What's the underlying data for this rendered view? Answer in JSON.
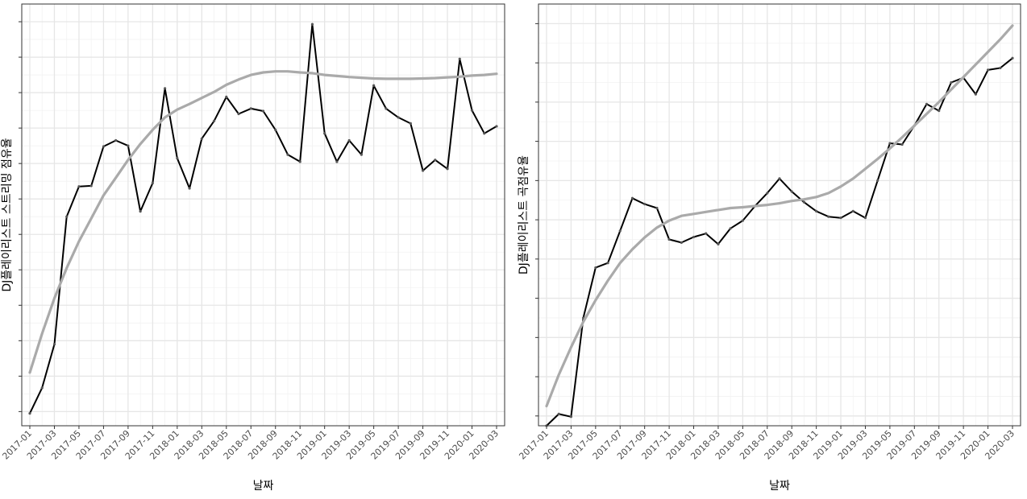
{
  "chart_data": [
    {
      "type": "line",
      "xlabel": "날짜",
      "ylabel": "DJ플레이리스트 스트리밍 점유율",
      "x_ticks": [
        "2017-01",
        "2017-03",
        "2017-05",
        "2017-07",
        "2017-09",
        "2017-11",
        "2018-01",
        "2018-03",
        "2018-05",
        "2018-07",
        "2018-09",
        "2018-11",
        "2019-01",
        "2019-03",
        "2019-05",
        "2019-07",
        "2019-09",
        "2019-11",
        "2020-01",
        "2020-03"
      ],
      "x": [
        "2017-01",
        "2017-02",
        "2017-03",
        "2017-04",
        "2017-05",
        "2017-06",
        "2017-07",
        "2017-08",
        "2017-09",
        "2017-10",
        "2017-11",
        "2017-12",
        "2018-01",
        "2018-02",
        "2018-03",
        "2018-04",
        "2018-05",
        "2018-06",
        "2018-07",
        "2018-08",
        "2018-09",
        "2018-10",
        "2018-11",
        "2018-12",
        "2019-01",
        "2019-02",
        "2019-03",
        "2019-04",
        "2019-05",
        "2019-06",
        "2019-07",
        "2019-08",
        "2019-09",
        "2019-10",
        "2019-11",
        "2019-12",
        "2020-01",
        "2020-02",
        "2020-03"
      ],
      "y_ticks": [
        1,
        2,
        3,
        4,
        5,
        6,
        7,
        8,
        9,
        10,
        11,
        12
      ],
      "ylim": [
        0.6,
        12.5
      ],
      "series": [
        {
          "values": [
            0.95,
            1.67,
            2.9,
            6.5,
            7.35,
            7.37,
            8.48,
            8.65,
            8.5,
            6.65,
            7.45,
            10.12,
            8.15,
            7.3,
            8.7,
            9.2,
            9.88,
            9.4,
            9.55,
            9.48,
            8.95,
            8.25,
            8.05,
            11.93,
            8.85,
            8.05,
            8.65,
            8.25,
            10.2,
            9.55,
            9.3,
            9.13,
            7.8,
            8.1,
            7.85,
            10.95,
            9.5,
            8.85,
            9.05
          ]
        },
        {
          "values": [
            2.1,
            3.2,
            4.2,
            5.05,
            5.8,
            6.45,
            7.1,
            7.6,
            8.1,
            8.55,
            8.95,
            9.3,
            9.52,
            9.68,
            9.85,
            10.02,
            10.22,
            10.37,
            10.5,
            10.57,
            10.6,
            10.6,
            10.57,
            10.55,
            10.5,
            10.47,
            10.44,
            10.42,
            10.4,
            10.39,
            10.39,
            10.39,
            10.4,
            10.41,
            10.43,
            10.45,
            10.48,
            10.5,
            10.53
          ]
        }
      ]
    },
    {
      "type": "line",
      "xlabel": "날짜",
      "ylabel": "DJ플레이리스트 곡점유율",
      "x_ticks": [
        "2017-01",
        "2017-03",
        "2017-05",
        "2017-07",
        "2017-09",
        "2017-11",
        "2018-01",
        "2018-03",
        "2018-05",
        "2018-07",
        "2018-09",
        "2018-11",
        "2019-01",
        "2019-03",
        "2019-05",
        "2019-07",
        "2019-09",
        "2019-11",
        "2020-01",
        "2020-03"
      ],
      "x": [
        "2017-01",
        "2017-02",
        "2017-03",
        "2017-04",
        "2017-05",
        "2017-06",
        "2017-07",
        "2017-08",
        "2017-09",
        "2017-10",
        "2017-11",
        "2017-12",
        "2018-01",
        "2018-02",
        "2018-03",
        "2018-04",
        "2018-05",
        "2018-06",
        "2018-07",
        "2018-08",
        "2018-09",
        "2018-10",
        "2018-11",
        "2018-12",
        "2019-01",
        "2019-02",
        "2019-03",
        "2019-04",
        "2019-05",
        "2019-06",
        "2019-07",
        "2019-08",
        "2019-09",
        "2019-10",
        "2019-11",
        "2019-12",
        "2020-01",
        "2020-02",
        "2020-03"
      ],
      "y_ticks": [
        1,
        2,
        3,
        4,
        5,
        6,
        7,
        8,
        9,
        10,
        11
      ],
      "ylim": [
        0.75,
        11.5
      ],
      "series": [
        {
          "values": [
            0.75,
            1.05,
            0.98,
            3.5,
            4.78,
            4.9,
            5.72,
            6.55,
            6.4,
            6.3,
            5.5,
            5.42,
            5.56,
            5.65,
            5.38,
            5.78,
            5.98,
            6.35,
            6.68,
            7.05,
            6.72,
            6.45,
            6.22,
            6.08,
            6.05,
            6.22,
            6.05,
            7.0,
            7.95,
            7.92,
            8.4,
            8.95,
            8.78,
            9.5,
            9.62,
            9.2,
            9.82,
            9.87,
            10.12
          ]
        },
        {
          "values": [
            1.25,
            2.05,
            2.75,
            3.4,
            3.95,
            4.45,
            4.9,
            5.25,
            5.55,
            5.8,
            5.98,
            6.1,
            6.15,
            6.2,
            6.25,
            6.3,
            6.32,
            6.35,
            6.38,
            6.42,
            6.48,
            6.52,
            6.58,
            6.68,
            6.85,
            7.05,
            7.3,
            7.55,
            7.82,
            8.1,
            8.4,
            8.7,
            9.0,
            9.32,
            9.64,
            9.96,
            10.28,
            10.6,
            10.95
          ]
        }
      ]
    }
  ]
}
